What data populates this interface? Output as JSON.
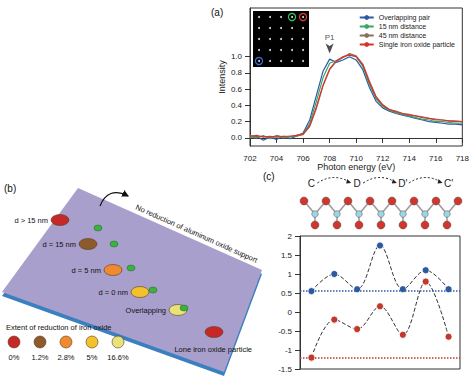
{
  "chart_data": [
    {
      "type": "line",
      "title": "(a)",
      "x_label": "Photon energy (eV)",
      "y_label": "Intensity",
      "x": [
        702,
        702.5,
        703,
        703.5,
        704,
        704.5,
        705,
        705.5,
        706,
        706.5,
        707,
        707.5,
        708,
        708.5,
        709,
        709.5,
        710,
        710.5,
        711,
        711.5,
        712,
        712.5,
        713,
        713.5,
        714,
        714.5,
        715,
        715.5,
        716,
        716.5,
        717,
        717.5,
        718
      ],
      "series": [
        {
          "name": "Overlapping pair",
          "color": "#2b5aa6",
          "values": [
            0.0,
            0.02,
            -0.03,
            0.01,
            -0.02,
            0.02,
            -0.01,
            0.02,
            0.06,
            0.22,
            0.52,
            0.82,
            0.97,
            0.93,
            0.96,
            1.0,
            0.96,
            0.84,
            0.62,
            0.45,
            0.37,
            0.33,
            0.3,
            0.28,
            0.26,
            0.24,
            0.22,
            0.2,
            0.19,
            0.18,
            0.17,
            0.17,
            0.16
          ]
        },
        {
          "name": "15 nm distance",
          "color": "#3aa66a",
          "values": [
            0.01,
            0.0,
            0.03,
            -0.01,
            0.02,
            0.0,
            0.01,
            0.03,
            0.05,
            0.18,
            0.45,
            0.74,
            0.92,
            0.95,
            0.99,
            1.03,
            1.0,
            0.88,
            0.66,
            0.48,
            0.39,
            0.34,
            0.31,
            0.29,
            0.27,
            0.25,
            0.23,
            0.22,
            0.2,
            0.2,
            0.19,
            0.18,
            0.18
          ]
        },
        {
          "name": "45 nm distance",
          "color": "#8a7060",
          "values": [
            0.03,
            0.01,
            0.02,
            0.0,
            0.03,
            0.01,
            0.02,
            0.02,
            0.04,
            0.14,
            0.36,
            0.64,
            0.84,
            0.94,
            0.99,
            1.04,
            1.01,
            0.91,
            0.7,
            0.51,
            0.41,
            0.35,
            0.33,
            0.3,
            0.29,
            0.27,
            0.26,
            0.24,
            0.23,
            0.22,
            0.21,
            0.21,
            0.2
          ]
        },
        {
          "name": "Single iron oxide particle",
          "color": "#d9342b",
          "values": [
            0.02,
            0.03,
            0.01,
            0.02,
            0.01,
            0.02,
            0.02,
            0.03,
            0.05,
            0.15,
            0.38,
            0.65,
            0.85,
            0.95,
            1.0,
            1.02,
            1.0,
            0.9,
            0.68,
            0.5,
            0.4,
            0.35,
            0.32,
            0.3,
            0.28,
            0.27,
            0.25,
            0.24,
            0.22,
            0.22,
            0.21,
            0.2,
            0.2
          ]
        }
      ],
      "xlim": [
        702,
        718
      ],
      "xticks": [
        702,
        704,
        706,
        708,
        710,
        712,
        714,
        716,
        718
      ],
      "ylim": [
        -0.1,
        1.6
      ],
      "yticks": [
        {
          "value": 0,
          "label": "0.0"
        },
        0.2,
        0.4,
        0.6,
        0.8,
        {
          "value": 1,
          "label": "1.0"
        }
      ],
      "grid": false,
      "legend": "top-right",
      "annotations": [
        {
          "text": "P1",
          "x": 708,
          "y": 1.04
        }
      ]
    },
    {
      "type": "line",
      "title": "(c)",
      "categories": [
        "C",
        null,
        "D",
        null,
        "D'",
        null,
        "C'"
      ],
      "series": [
        {
          "color": "#2c5aa0",
          "marker": "circle",
          "line_style": "dashed",
          "values": [
            0.55,
            1.0,
            0.6,
            1.75,
            0.6,
            1.1,
            0.6
          ]
        },
        {
          "color": "#c0392b",
          "marker": "circle",
          "line_style": "dashed",
          "values": [
            -1.2,
            -0.2,
            -0.45,
            0.15,
            -0.6,
            0.8,
            -0.65
          ]
        }
      ],
      "ylim": [
        -1.5,
        2
      ],
      "yticks": [
        -1.5,
        -1,
        -0.5,
        0,
        0.5,
        1,
        1.5,
        2
      ],
      "grid": false
    }
  ],
  "diagram": {
    "label": "(b)",
    "support_note": "No reduction of aluminum oxide support",
    "particles": [
      {
        "label": "d > 15 nm",
        "color": "#c62828"
      },
      {
        "label": "d = 15 nm",
        "color": "#8d5a2b"
      },
      {
        "label": "d = 5 nm",
        "color": "#ef8a2e"
      },
      {
        "label": "d = 0 nm",
        "color": "#f2c12e"
      },
      {
        "label": "Overlapping",
        "color": "#e8e27a"
      },
      {
        "label": "Lone iron oxide particle",
        "color": "#c62828"
      }
    ],
    "legend": {
      "title": "Extent of reduction of iron oxide",
      "items": [
        {
          "label": "0%",
          "color": "#c62828"
        },
        {
          "label": "1.2%",
          "color": "#8d5a2b"
        },
        {
          "label": "2.8%",
          "color": "#ef8a2e"
        },
        {
          "label": "5%",
          "color": "#f2c12e"
        },
        {
          "label": "16.6%",
          "color": "#e8e27a"
        }
      ]
    }
  }
}
